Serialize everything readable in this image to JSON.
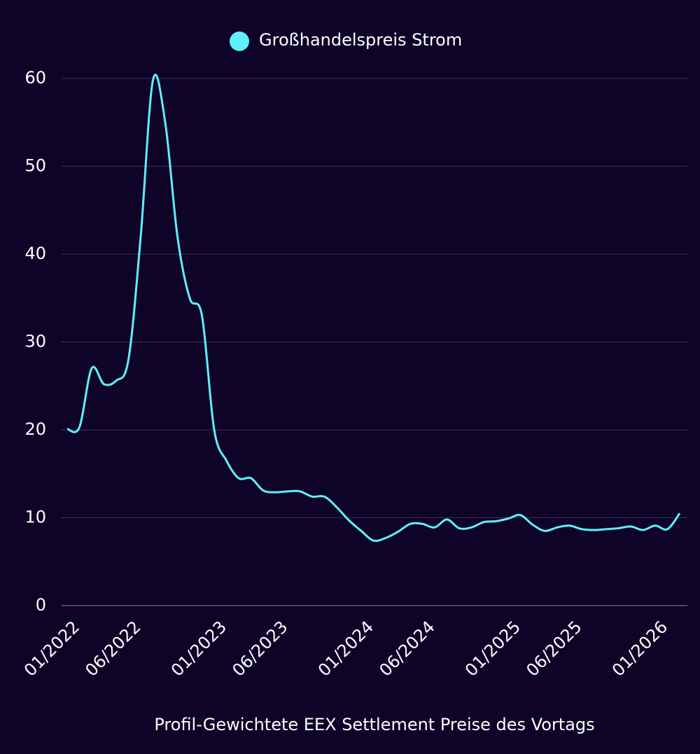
{
  "chart_data": {
    "type": "line",
    "legend_position": "top",
    "x_label": "Profil-Gewichtete EEX Settlement Preise des Vortags",
    "x": [
      "01/2022",
      "02/2022",
      "03/2022",
      "04/2022",
      "05/2022",
      "06/2022",
      "07/2022",
      "08/2022",
      "09/2022",
      "10/2022",
      "11/2022",
      "12/2022",
      "01/2023",
      "02/2023",
      "03/2023",
      "04/2023",
      "05/2023",
      "06/2023",
      "07/2023",
      "08/2023",
      "09/2023",
      "10/2023",
      "11/2023",
      "12/2023",
      "01/2024",
      "02/2024",
      "03/2024",
      "04/2024",
      "05/2024",
      "06/2024",
      "07/2024",
      "08/2024",
      "09/2024",
      "10/2024",
      "11/2024",
      "12/2024",
      "01/2025",
      "02/2025",
      "03/2025",
      "04/2025",
      "05/2025",
      "06/2025",
      "07/2025",
      "08/2025",
      "09/2025",
      "10/2025",
      "11/2025",
      "12/2025",
      "01/2026",
      "02/2026",
      "03/2026"
    ],
    "xticks": [
      "01/2022",
      "06/2022",
      "01/2023",
      "06/2023",
      "01/2024",
      "06/2024",
      "01/2025",
      "06/2025",
      "01/2026"
    ],
    "series": [
      {
        "name": "Großhandelspreis Strom",
        "color": "#5ef0fb",
        "values": [
          20.1,
          20.3,
          27,
          25.2,
          25.6,
          28,
          42,
          59.8,
          55,
          42,
          35,
          33,
          20,
          16.5,
          14.5,
          14.5,
          13.1,
          12.9,
          13,
          13,
          12.4,
          12.4,
          11.2,
          9.7,
          8.5,
          7.4,
          7.7,
          8.4,
          9.3,
          9.3,
          8.9,
          9.8,
          8.8,
          8.9,
          9.5,
          9.6,
          9.9,
          10.3,
          9.2,
          8.5,
          8.9,
          9.1,
          8.7,
          8.6,
          8.7,
          8.8,
          9.0,
          8.6,
          9.1,
          8.7,
          10.5
        ]
      }
    ],
    "ylim": [
      0,
      60
    ],
    "yticks": [
      0,
      10,
      20,
      30,
      40,
      50,
      60
    ],
    "grid": true
  }
}
